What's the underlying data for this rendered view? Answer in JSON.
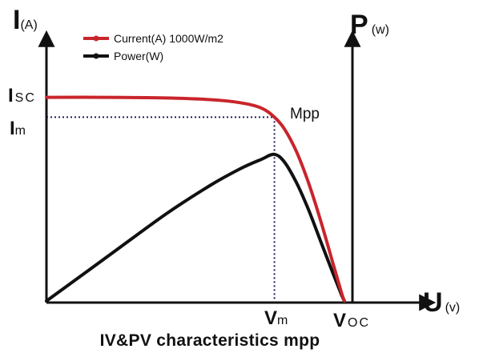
{
  "chart_data": {
    "type": "line",
    "title": "IV&PV characteristics mpp",
    "axes": {
      "current": {
        "main": "I",
        "sub": "(A)"
      },
      "power": {
        "main": "P",
        "sub": "(w)"
      },
      "voltage": {
        "main": "U",
        "sub": "(v)"
      }
    },
    "ticks": {
      "isc": {
        "main": "I",
        "sub": "SC"
      },
      "im": {
        "main": "I",
        "sub": "m"
      },
      "vm": {
        "main": "V",
        "sub": "m"
      },
      "voc": {
        "main": "V",
        "sub": "OC"
      }
    },
    "annotation": "Mpp",
    "legend_position": "top-left",
    "x_range": [
      0,
      1
    ],
    "y_range": [
      0,
      1
    ],
    "series": [
      {
        "name": "Current(A)  1000W/m2",
        "color": "#c9252c",
        "points": [
          [
            0,
            0.986
          ],
          [
            0.2,
            0.986
          ],
          [
            0.4,
            0.983
          ],
          [
            0.55,
            0.975
          ],
          [
            0.65,
            0.96
          ],
          [
            0.72,
            0.935
          ],
          [
            0.765,
            0.89
          ],
          [
            0.8,
            0.83
          ],
          [
            0.84,
            0.72
          ],
          [
            0.88,
            0.57
          ],
          [
            0.92,
            0.39
          ],
          [
            0.96,
            0.19
          ],
          [
            0.99,
            0.04
          ],
          [
            1.0,
            0.0
          ]
        ]
      },
      {
        "name": "Power(W)",
        "color": "#111111",
        "points": [
          [
            0,
            0
          ],
          [
            0.2,
            0.21
          ],
          [
            0.4,
            0.42
          ],
          [
            0.55,
            0.56
          ],
          [
            0.65,
            0.64
          ],
          [
            0.72,
            0.685
          ],
          [
            0.765,
            0.71
          ],
          [
            0.8,
            0.67
          ],
          [
            0.84,
            0.57
          ],
          [
            0.88,
            0.44
          ],
          [
            0.92,
            0.29
          ],
          [
            0.96,
            0.14
          ],
          [
            0.99,
            0.03
          ],
          [
            1.0,
            0.0
          ]
        ]
      }
    ],
    "mpp": {
      "vm": 0.765,
      "im": 0.89,
      "pmax": 0.71
    }
  }
}
